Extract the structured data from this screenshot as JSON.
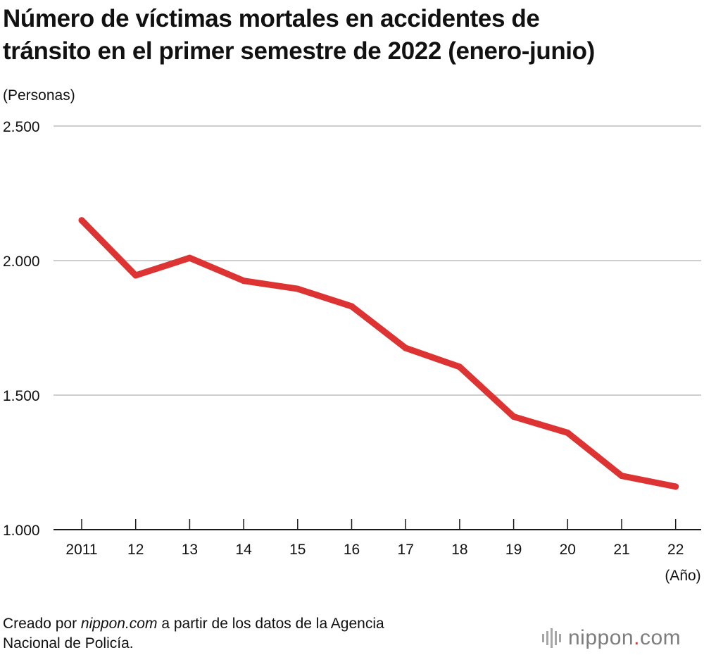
{
  "title": {
    "line1": "Número de víctimas mortales en accidentes de",
    "line2": "tránsito en el primer semestre de 2022 (enero-junio)"
  },
  "unit_label": "(Personas)",
  "x_unit_label": "(Año)",
  "source": {
    "prefix": "Creado por ",
    "site": "nippon.com",
    "suffix_line1": " a partir de los datos de la Agencia",
    "line2": "Nacional de Policía."
  },
  "logo": {
    "name": "nippon",
    "dot": ".",
    "tld": "com"
  },
  "colors": {
    "line": "#de3333",
    "grid": "#bdbdbd",
    "axis": "#1a1a1a",
    "logo_text": "#7d7d7d",
    "logo_dot": "#e23232"
  },
  "chart_data": {
    "type": "line",
    "title": "Número de víctimas mortales en accidentes de tránsito en el primer semestre de 2022 (enero-junio)",
    "xlabel": "(Año)",
    "ylabel": "(Personas)",
    "categories": [
      "2011",
      "12",
      "13",
      "14",
      "15",
      "16",
      "17",
      "18",
      "19",
      "20",
      "21",
      "22"
    ],
    "series": [
      {
        "name": "Víctimas mortales",
        "values": [
          2150,
          1945,
          2010,
          1925,
          1895,
          1830,
          1675,
          1605,
          1420,
          1360,
          1200,
          1160
        ]
      }
    ],
    "ylim": [
      1000,
      2500
    ],
    "yticks": [
      1000,
      1500,
      2000,
      2500
    ],
    "ytick_labels": [
      "1.000",
      "1.500",
      "2.000",
      "2.500"
    ],
    "grid": true
  }
}
